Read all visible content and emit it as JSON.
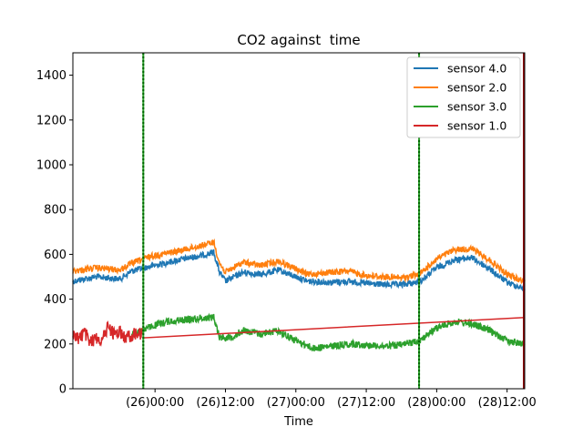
{
  "chart_data": {
    "type": "line",
    "title": "CO2 against  time",
    "xlabel": "Time",
    "ylabel": "",
    "ylim": [
      0,
      1500
    ],
    "xlim": [
      "2000-01-25T10:00",
      "2000-01-28T15:00"
    ],
    "grid": false,
    "legend_position": "top-right",
    "yticks": [
      0,
      200,
      400,
      600,
      800,
      1000,
      1200,
      1400
    ],
    "xticks": [
      {
        "x": "2000-01-26T00:00",
        "label": "(26)00:00"
      },
      {
        "x": "2000-01-26T12:00",
        "label": "(26)12:00"
      },
      {
        "x": "2000-01-27T00:00",
        "label": "(27)00:00"
      },
      {
        "x": "2000-01-27T12:00",
        "label": "(27)12:00"
      },
      {
        "x": "2000-01-28T00:00",
        "label": "(28)00:00"
      },
      {
        "x": "2000-01-28T12:00",
        "label": "(28)12:00"
      }
    ],
    "series": [
      {
        "name": "sensor 4.0",
        "color": "#1f77b4",
        "points": [
          [
            "2000-01-25T10:00",
            480
          ],
          [
            "2000-01-25T14:00",
            500
          ],
          [
            "2000-01-25T18:00",
            490
          ],
          [
            "2000-01-25T20:00",
            525
          ],
          [
            "2000-01-25T23:00",
            545
          ],
          [
            "2000-01-26T04:00",
            575
          ],
          [
            "2000-01-26T08:00",
            595
          ],
          [
            "2000-01-26T10:00",
            610
          ],
          [
            "2000-01-26T11:00",
            520
          ],
          [
            "2000-01-26T12:00",
            480
          ],
          [
            "2000-01-26T15:00",
            520
          ],
          [
            "2000-01-26T18:00",
            510
          ],
          [
            "2000-01-26T21:00",
            530
          ],
          [
            "2000-01-27T00:00",
            500
          ],
          [
            "2000-01-27T02:00",
            480
          ],
          [
            "2000-01-27T06:00",
            475
          ],
          [
            "2000-01-27T09:00",
            480
          ],
          [
            "2000-01-27T12:00",
            470
          ],
          [
            "2000-01-27T15:00",
            465
          ],
          [
            "2000-01-27T18:00",
            465
          ],
          [
            "2000-01-27T21:00",
            475
          ],
          [
            "2000-01-28T00:00",
            540
          ],
          [
            "2000-01-28T03:00",
            575
          ],
          [
            "2000-01-28T06:00",
            585
          ],
          [
            "2000-01-28T09:00",
            535
          ],
          [
            "2000-01-28T12:00",
            475
          ],
          [
            "2000-01-28T15:00",
            445
          ]
        ]
      },
      {
        "name": "sensor 2.0",
        "color": "#ff7f0e",
        "points": [
          [
            "2000-01-25T10:00",
            525
          ],
          [
            "2000-01-25T14:00",
            540
          ],
          [
            "2000-01-25T18:00",
            530
          ],
          [
            "2000-01-25T20:00",
            560
          ],
          [
            "2000-01-25T23:00",
            590
          ],
          [
            "2000-01-26T04:00",
            615
          ],
          [
            "2000-01-26T08:00",
            640
          ],
          [
            "2000-01-26T10:00",
            655
          ],
          [
            "2000-01-26T11:00",
            560
          ],
          [
            "2000-01-26T12:00",
            520
          ],
          [
            "2000-01-26T15:00",
            565
          ],
          [
            "2000-01-26T18:00",
            550
          ],
          [
            "2000-01-26T21:00",
            570
          ],
          [
            "2000-01-27T00:00",
            535
          ],
          [
            "2000-01-27T02:00",
            510
          ],
          [
            "2000-01-27T06:00",
            520
          ],
          [
            "2000-01-27T09:00",
            525
          ],
          [
            "2000-01-27T12:00",
            505
          ],
          [
            "2000-01-27T15:00",
            500
          ],
          [
            "2000-01-27T18:00",
            495
          ],
          [
            "2000-01-27T21:00",
            510
          ],
          [
            "2000-01-28T00:00",
            580
          ],
          [
            "2000-01-28T03:00",
            620
          ],
          [
            "2000-01-28T06:00",
            625
          ],
          [
            "2000-01-28T09:00",
            575
          ],
          [
            "2000-01-28T12:00",
            510
          ],
          [
            "2000-01-28T15:00",
            480
          ]
        ]
      },
      {
        "name": "sensor 3.0",
        "color": "#2ca02c",
        "points": [
          [
            "2000-01-25T20:00",
            240
          ],
          [
            "2000-01-25T22:00",
            265
          ],
          [
            "2000-01-26T02:00",
            300
          ],
          [
            "2000-01-26T06:00",
            310
          ],
          [
            "2000-01-26T08:00",
            315
          ],
          [
            "2000-01-26T10:00",
            320
          ],
          [
            "2000-01-26T11:00",
            230
          ],
          [
            "2000-01-26T13:00",
            230
          ],
          [
            "2000-01-26T15:00",
            260
          ],
          [
            "2000-01-26T18:00",
            245
          ],
          [
            "2000-01-26T21:00",
            260
          ],
          [
            "2000-01-27T00:00",
            215
          ],
          [
            "2000-01-27T03:00",
            180
          ],
          [
            "2000-01-27T06:00",
            190
          ],
          [
            "2000-01-27T09:00",
            200
          ],
          [
            "2000-01-27T12:00",
            195
          ],
          [
            "2000-01-27T15:00",
            190
          ],
          [
            "2000-01-27T18:00",
            195
          ],
          [
            "2000-01-27T21:00",
            215
          ],
          [
            "2000-01-28T00:00",
            270
          ],
          [
            "2000-01-28T03:00",
            300
          ],
          [
            "2000-01-28T06:00",
            290
          ],
          [
            "2000-01-28T09:00",
            260
          ],
          [
            "2000-01-28T12:00",
            215
          ],
          [
            "2000-01-28T15:00",
            200
          ]
        ]
      },
      {
        "name": "sensor 1.0",
        "color": "#d62728",
        "points": [
          [
            "2000-01-25T10:00",
            240
          ],
          [
            "2000-01-25T11:00",
            225
          ],
          [
            "2000-01-25T12:00",
            250
          ],
          [
            "2000-01-25T13:00",
            205
          ],
          [
            "2000-01-25T14:00",
            230
          ],
          [
            "2000-01-25T15:00",
            215
          ],
          [
            "2000-01-25T16:00",
            280
          ],
          [
            "2000-01-25T17:00",
            245
          ],
          [
            "2000-01-25T18:00",
            255
          ],
          [
            "2000-01-25T19:00",
            225
          ],
          [
            "2000-01-25T20:00",
            240
          ],
          [
            "2000-01-25T22:00",
            247
          ],
          [
            "2000-01-28T15:00",
            318
          ]
        ]
      }
    ],
    "vertical_markers": [
      {
        "x": "2000-01-25T22:00",
        "color": "#006400",
        "style": "dotted"
      },
      {
        "x": "2000-01-27T21:00",
        "color": "#006400",
        "style": "dotted"
      },
      {
        "x": "2000-01-28T15:00",
        "color": "#8b0000",
        "style": "solid"
      }
    ]
  }
}
